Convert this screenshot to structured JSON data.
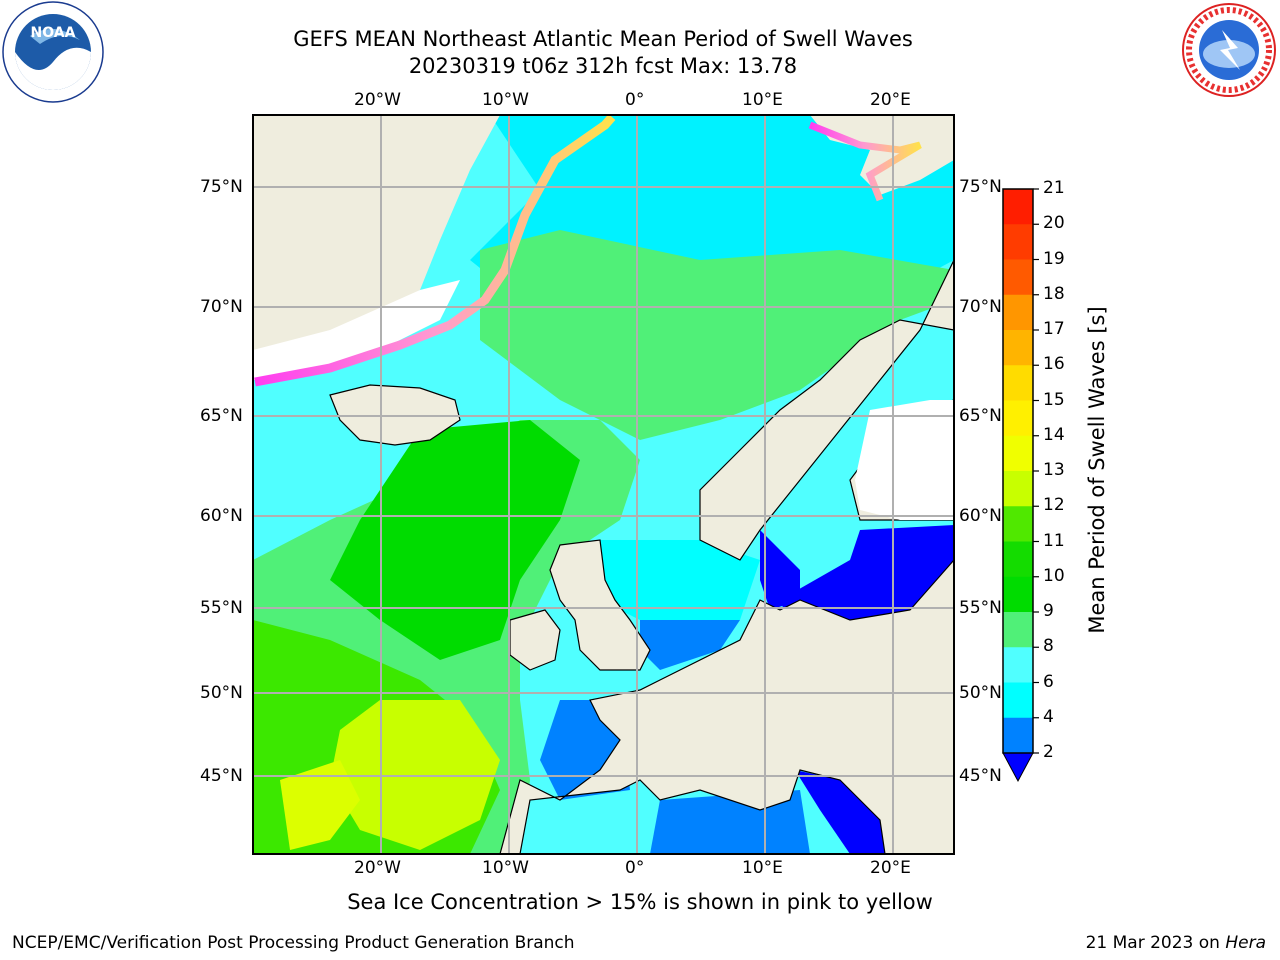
{
  "header": {
    "title_line1": "GEFS MEAN Northeast Atlantic Mean Period of Swell Waves",
    "title_line2": "20230319 t06z 312h fcst   Max: 13.78"
  },
  "logos": {
    "left": "NOAA",
    "left_ring_text": "NATIONAL OCEANIC AND ATMOSPHERIC ADMINISTRATION · U.S. DEPARTMENT OF COMMERCE",
    "right_ring_text": "NATIONAL WEATHER SERVICE"
  },
  "map": {
    "lon_labels": [
      "20°W",
      "10°W",
      "0°",
      "10°E",
      "20°E"
    ],
    "lat_labels": [
      "75°N",
      "70°N",
      "65°N",
      "60°N",
      "55°N",
      "50°N",
      "45°N"
    ],
    "land_color": "#efedde",
    "gridline_color": "#b0b0b0"
  },
  "colorbar": {
    "label": "Mean Period of Swell Waves [s]",
    "ticks": [
      "21",
      "20",
      "19",
      "18",
      "17",
      "16",
      "15",
      "14",
      "13",
      "12",
      "11",
      "10",
      "9",
      "8",
      "6",
      "4",
      "2"
    ],
    "colors": [
      "#ff1e00",
      "#ff3c00",
      "#ff5a00",
      "#ff7800",
      "#ff9600",
      "#ffb400",
      "#ffdc00",
      "#fff000",
      "#f0ff00",
      "#dcff00",
      "#c8ff00",
      "#50e800",
      "#14dc00",
      "#00dc00",
      "#50f078",
      "#a0ffe6",
      "#50ffff",
      "#00ffff",
      "#0082ff",
      "#0000ff"
    ]
  },
  "note": "Sea Ice Concentration > 15% is shown in pink to yellow",
  "footer": {
    "left": "NCEP/EMC/Verification Post Processing Product Generation Branch",
    "right_date": "21 Mar 2023 on",
    "right_host": "Hera"
  }
}
